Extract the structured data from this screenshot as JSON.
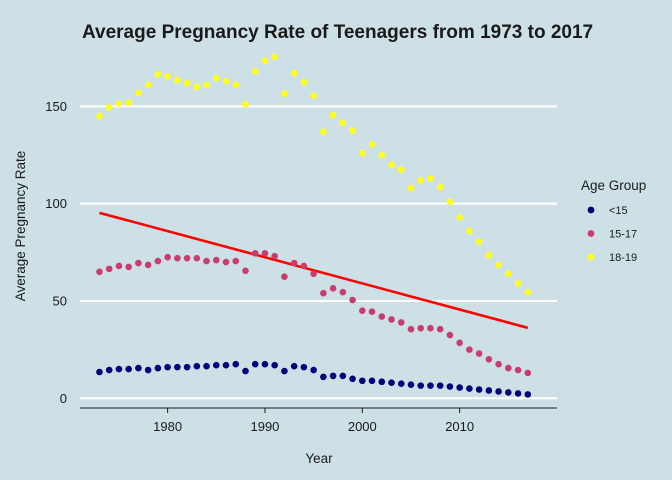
{
  "chart_data": {
    "type": "scatter",
    "title": "Average Pregnancy Rate of Teenagers from 1973 to 2017",
    "xlabel": "Year",
    "ylabel": "Average Pregnancy Rate",
    "xlim": [
      1971,
      2020
    ],
    "ylim": [
      -5,
      180
    ],
    "x_ticks": [
      1980,
      1990,
      2000,
      2010
    ],
    "y_ticks": [
      0,
      50,
      100,
      150
    ],
    "grid": "horizontal major lines",
    "legend": {
      "title": "Age Group",
      "placement": "right"
    },
    "x": [
      1973,
      1974,
      1975,
      1976,
      1977,
      1978,
      1979,
      1980,
      1981,
      1982,
      1983,
      1984,
      1985,
      1986,
      1987,
      1988,
      1989,
      1990,
      1991,
      1992,
      1993,
      1994,
      1995,
      1996,
      1997,
      1998,
      1999,
      2000,
      2001,
      2002,
      2003,
      2004,
      2005,
      2006,
      2007,
      2008,
      2009,
      2010,
      2011,
      2012,
      2013,
      2014,
      2015,
      2016,
      2017
    ],
    "series": [
      {
        "name": "<15",
        "color": "#00007a",
        "values": [
          13.5,
          14.5,
          15,
          15,
          15.5,
          14.5,
          15.5,
          16,
          16,
          16,
          16.5,
          16.5,
          17,
          17,
          17.5,
          14,
          17.5,
          17.5,
          17,
          14,
          16.5,
          16,
          14.5,
          11,
          11.5,
          11.5,
          10,
          9,
          9,
          8.5,
          8,
          7.5,
          7,
          6.5,
          6.5,
          6.5,
          6,
          5.5,
          5,
          4.5,
          4,
          3.5,
          3,
          2.5,
          2
        ]
      },
      {
        "name": "15-17",
        "color": "#c83c6e",
        "values": [
          65,
          66.5,
          68,
          67.5,
          69.5,
          68.5,
          70.5,
          72.5,
          72,
          72,
          72,
          70.5,
          71,
          70,
          70.5,
          65.5,
          74.5,
          74.5,
          73,
          62.5,
          69.5,
          68,
          64,
          54,
          56.5,
          54.5,
          50.5,
          45,
          44.5,
          42,
          40.5,
          39,
          35.5,
          36,
          36,
          35.5,
          32.5,
          28.5,
          25,
          23,
          20,
          17.5,
          15.5,
          14.5,
          13
        ]
      },
      {
        "name": "18-19",
        "color": "#ffff1a",
        "values": [
          145,
          149.5,
          151.5,
          152,
          157,
          161,
          166.5,
          165.5,
          163.5,
          162,
          160,
          161,
          164.5,
          163,
          161,
          151,
          168,
          173.5,
          175.5,
          156.5,
          167,
          162.5,
          155.5,
          137,
          145.5,
          141.5,
          137.5,
          126,
          130.5,
          125,
          120,
          117.5,
          108,
          112,
          113,
          108.5,
          101,
          93,
          86,
          80.5,
          73.5,
          68.5,
          64,
          59,
          54.5
        ]
      }
    ],
    "trend_line": {
      "color": "#ff0000",
      "x": [
        1973,
        2017
      ],
      "y": [
        95.3,
        36.2
      ]
    }
  }
}
